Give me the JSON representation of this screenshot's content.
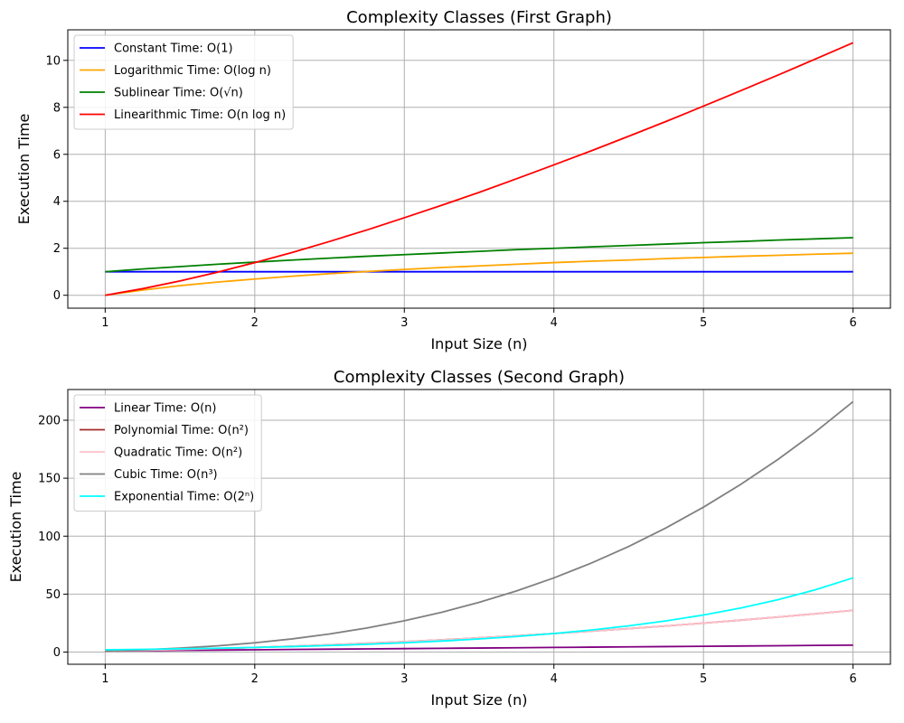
{
  "chart_data": [
    {
      "type": "line",
      "title": "Complexity Classes (First Graph)",
      "xlabel": "Input Size (n)",
      "ylabel": "Execution Time",
      "xlim": [
        0.75,
        6.25
      ],
      "ylim": [
        -0.55,
        11.3
      ],
      "xticks": [
        1,
        2,
        3,
        4,
        5,
        6
      ],
      "yticks": [
        0,
        2,
        4,
        6,
        8,
        10
      ],
      "grid": true,
      "legend_position": "top-left",
      "x": [
        1,
        1.25,
        1.5,
        1.75,
        2,
        2.25,
        2.5,
        2.75,
        3,
        3.25,
        3.5,
        3.75,
        4,
        4.25,
        4.5,
        4.75,
        5,
        5.25,
        5.5,
        5.75,
        6
      ],
      "series": [
        {
          "name": "Constant Time: O(1)",
          "color": "#0000ff",
          "values": [
            1,
            1,
            1,
            1,
            1,
            1,
            1,
            1,
            1,
            1,
            1,
            1,
            1,
            1,
            1,
            1,
            1,
            1,
            1,
            1,
            1
          ]
        },
        {
          "name": "Logarithmic Time: O(log n)",
          "color": "#ffa500",
          "values": [
            0,
            0.22,
            0.41,
            0.56,
            0.69,
            0.81,
            0.92,
            1.01,
            1.1,
            1.18,
            1.25,
            1.32,
            1.39,
            1.45,
            1.5,
            1.56,
            1.61,
            1.66,
            1.7,
            1.75,
            1.79
          ]
        },
        {
          "name": "Sublinear Time: O(√n)",
          "color": "#008000",
          "values": [
            1,
            1.12,
            1.22,
            1.32,
            1.41,
            1.5,
            1.58,
            1.66,
            1.73,
            1.8,
            1.87,
            1.94,
            2,
            2.06,
            2.12,
            2.18,
            2.24,
            2.29,
            2.35,
            2.4,
            2.45
          ]
        },
        {
          "name": "Linearithmic Time: O(n log n)",
          "color": "#ff0000",
          "values": [
            0,
            0.28,
            0.61,
            0.98,
            1.39,
            1.82,
            2.29,
            2.78,
            3.3,
            3.83,
            4.38,
            4.96,
            5.55,
            6.15,
            6.77,
            7.4,
            8.05,
            8.71,
            9.38,
            10.06,
            10.75
          ]
        }
      ]
    },
    {
      "type": "line",
      "title": "Complexity Classes (Second Graph)",
      "xlabel": "Input Size (n)",
      "ylabel": "Execution Time",
      "xlim": [
        0.75,
        6.25
      ],
      "ylim": [
        -10.5,
        226.5
      ],
      "xticks": [
        1,
        2,
        3,
        4,
        5,
        6
      ],
      "yticks": [
        0,
        50,
        100,
        150,
        200
      ],
      "grid": true,
      "legend_position": "top-left",
      "x": [
        1,
        1.25,
        1.5,
        1.75,
        2,
        2.25,
        2.5,
        2.75,
        3,
        3.25,
        3.5,
        3.75,
        4,
        4.25,
        4.5,
        4.75,
        5,
        5.25,
        5.5,
        5.75,
        6
      ],
      "series": [
        {
          "name": "Linear Time: O(n)",
          "color": "#800080",
          "values": [
            1,
            1.25,
            1.5,
            1.75,
            2,
            2.25,
            2.5,
            2.75,
            3,
            3.25,
            3.5,
            3.75,
            4,
            4.25,
            4.5,
            4.75,
            5,
            5.25,
            5.5,
            5.75,
            6
          ]
        },
        {
          "name": "Polynomial Time: O(n²)",
          "color": "#a52a2a",
          "values": [
            1,
            1.56,
            2.25,
            3.06,
            4,
            5.06,
            6.25,
            7.56,
            9,
            10.56,
            12.25,
            14.06,
            16,
            18.06,
            20.25,
            22.56,
            25,
            27.56,
            30.25,
            33.06,
            36
          ]
        },
        {
          "name": "Quadratic Time: O(n²)",
          "color": "#ffc0cb",
          "values": [
            1,
            1.56,
            2.25,
            3.06,
            4,
            5.06,
            6.25,
            7.56,
            9,
            10.56,
            12.25,
            14.06,
            16,
            18.06,
            20.25,
            22.56,
            25,
            27.56,
            30.25,
            33.06,
            36
          ]
        },
        {
          "name": "Cubic Time: O(n³)",
          "color": "#808080",
          "values": [
            1,
            1.95,
            3.38,
            5.36,
            8,
            11.39,
            15.63,
            20.8,
            27,
            34.33,
            42.88,
            52.73,
            64,
            76.77,
            91.13,
            107.17,
            125,
            144.7,
            166.38,
            190.11,
            216
          ]
        },
        {
          "name": "Exponential Time: O(2ⁿ)",
          "color": "#00ffff",
          "values": [
            2,
            2.38,
            2.83,
            3.36,
            4,
            4.76,
            5.66,
            6.73,
            8,
            9.51,
            11.31,
            13.45,
            16,
            19.03,
            22.63,
            26.91,
            32,
            38.05,
            45.25,
            53.82,
            64
          ]
        }
      ]
    }
  ]
}
